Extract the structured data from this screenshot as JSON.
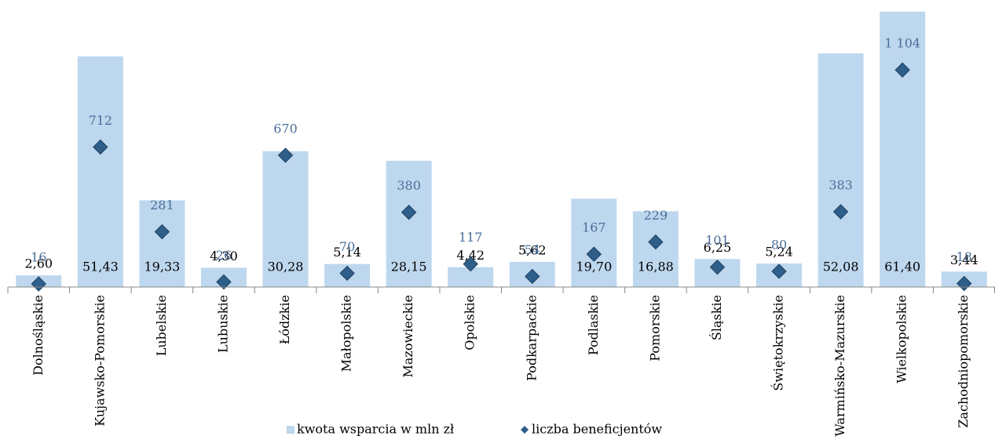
{
  "chart_data": {
    "type": "bar",
    "categories": [
      "Dolnośląskie",
      "Kujawsko-Pomorskie",
      "Lubelskie",
      "Lubuskie",
      "Łódzkie",
      "Małopolskie",
      "Mazowieckie",
      "Opolskie",
      "Podkarpackie",
      "Podlaskie",
      "Pomorskie",
      "Śląskie",
      "Świętokrzyskie",
      "Warmińsko-Mazurskie",
      "Wielkopolskie",
      "Zachodniopomorskie"
    ],
    "series": [
      {
        "name": "kwota wsparcia w mln zł",
        "type": "bar",
        "color": "#bdd7ee",
        "values": [
          2.6,
          51.43,
          19.33,
          4.3,
          30.28,
          5.14,
          28.15,
          4.42,
          5.62,
          19.7,
          16.88,
          6.25,
          5.24,
          52.08,
          61.4,
          3.44
        ],
        "value_labels": [
          "2,60",
          "51,43",
          "19,33",
          "4,30",
          "30,28",
          "5,14",
          "28,15",
          "4,42",
          "5,62",
          "19,70",
          "16,88",
          "6,25",
          "5,24",
          "52,08",
          "61,40",
          "3,44"
        ]
      },
      {
        "name": "liczba beneficjentów",
        "type": "scatter",
        "axis": "y2",
        "color": "#2e5f8a",
        "values": [
          16,
          712,
          281,
          26,
          670,
          70,
          380,
          117,
          54,
          167,
          229,
          101,
          80,
          383,
          1104,
          18
        ],
        "value_labels": [
          "16",
          "712",
          "281",
          "26",
          "670",
          "70",
          "380",
          "117",
          "54",
          "167",
          "229",
          "101",
          "80",
          "383",
          "1 104",
          "18"
        ]
      }
    ],
    "ylim": [
      0,
      64
    ],
    "y2lim": [
      0,
      1460
    ],
    "grid": false,
    "legend": "bottom"
  }
}
